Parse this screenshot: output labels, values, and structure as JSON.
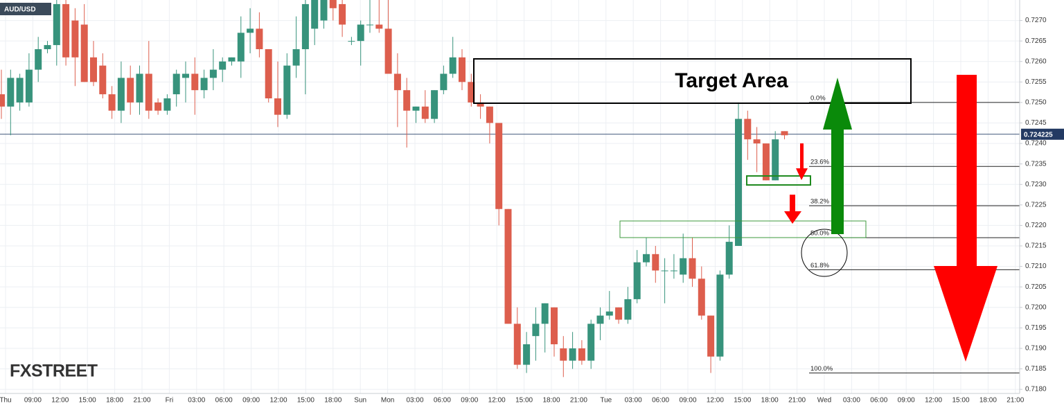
{
  "chart_data": {
    "type": "candlestick",
    "symbol": "AUD/USD",
    "watermark": "FXSTREET",
    "annotation": "Target Area",
    "ylim": [
      0.7179,
      0.7275
    ],
    "yticks": [
      {
        "value": 0.718,
        "label": "0.7180"
      },
      {
        "value": 0.7185,
        "label": "0.7185"
      },
      {
        "value": 0.719,
        "label": "0.7190"
      },
      {
        "value": 0.7195,
        "label": "0.7195"
      },
      {
        "value": 0.72,
        "label": "0.7200"
      },
      {
        "value": 0.7205,
        "label": "0.7205"
      },
      {
        "value": 0.721,
        "label": "0.7210"
      },
      {
        "value": 0.7215,
        "label": "0.7215"
      },
      {
        "value": 0.722,
        "label": "0.7220"
      },
      {
        "value": 0.7225,
        "label": "0.7225"
      },
      {
        "value": 0.723,
        "label": "0.7230"
      },
      {
        "value": 0.7235,
        "label": "0.7235"
      },
      {
        "value": 0.724,
        "label": "0.7240"
      },
      {
        "value": 0.7245,
        "label": "0.7245"
      },
      {
        "value": 0.725,
        "label": "0.7250"
      },
      {
        "value": 0.7255,
        "label": "0.7255"
      },
      {
        "value": 0.726,
        "label": "0.7260"
      },
      {
        "value": 0.7265,
        "label": "0.7265"
      },
      {
        "value": 0.727,
        "label": "0.7270"
      }
    ],
    "grid": true,
    "time_labels": [
      "Thu",
      "09:00",
      "12:00",
      "15:00",
      "18:00",
      "21:00",
      "Fri",
      "03:00",
      "06:00",
      "09:00",
      "12:00",
      "15:00",
      "18:00",
      "Sun",
      "Mon",
      "03:00",
      "06:00",
      "09:00",
      "12:00",
      "15:00",
      "18:00",
      "21:00",
      "Tue",
      "03:00",
      "06:00",
      "09:00",
      "12:00",
      "15:00",
      "18:00",
      "21:00",
      "Wed",
      "03:00",
      "06:00",
      "09:00",
      "12:00",
      "15:00",
      "18:00",
      "21:00"
    ],
    "last_price": 0.724225,
    "up_color": "#37937c",
    "down_color": "#dd5e4d",
    "fib_levels": [
      {
        "label": "0.0%",
        "value": 0.725
      },
      {
        "label": "23.6%",
        "value": 0.72344
      },
      {
        "label": "38.2%",
        "value": 0.72248
      },
      {
        "label": "50.0%",
        "value": 0.7217
      },
      {
        "label": "61.8%",
        "value": 0.72092
      },
      {
        "label": "100.0%",
        "value": 0.7184
      }
    ],
    "open": [
      0.7252,
      0.7249,
      0.725,
      0.725,
      0.7258,
      0.7263,
      0.7264,
      0.7274,
      0.727,
      0.7269,
      0.7261,
      0.7259,
      0.7252,
      0.7248,
      0.7256,
      0.725,
      0.7257,
      0.725,
      0.7248,
      0.7252,
      0.7256,
      0.7257,
      0.7253,
      0.7256,
      0.7258,
      0.726,
      0.726,
      0.7267,
      0.7268,
      0.7263,
      0.7251,
      0.7247,
      0.7259,
      0.7263,
      0.7268,
      0.727,
      0.728,
      0.7274,
      0.7265,
      0.7265,
      0.7269,
      0.7269,
      0.7268,
      0.7257,
      0.7253,
      0.7248,
      0.7249,
      0.7246,
      0.7253,
      0.7257,
      0.7261,
      0.7255,
      0.725,
      0.7249,
      0.7245,
      0.7224,
      0.7196,
      0.7186,
      0.7193,
      0.7196,
      0.72,
      0.719,
      0.7187,
      0.719,
      0.7187,
      0.7196,
      0.7198,
      0.72,
      0.7197,
      0.7202,
      0.7211,
      0.7213,
      0.7209,
      0.7209,
      0.7208,
      0.7212,
      0.7207,
      0.7198,
      0.7188,
      0.7208,
      0.7215,
      0.7246,
      0.7241,
      0.724,
      0.7231,
      0.7243
    ],
    "high": [
      0.7258,
      0.7258,
      0.7257,
      0.7262,
      0.7266,
      0.7265,
      0.7275,
      0.7275,
      0.7273,
      0.7274,
      0.7265,
      0.7262,
      0.7254,
      0.726,
      0.7259,
      0.7259,
      0.7265,
      0.7251,
      0.7252,
      0.7258,
      0.726,
      0.7261,
      0.7258,
      0.7263,
      0.7261,
      0.7261,
      0.7271,
      0.7273,
      0.7272,
      0.7263,
      0.726,
      0.7262,
      0.7271,
      0.7277,
      0.7277,
      0.728,
      0.7282,
      0.728,
      0.7266,
      0.727,
      0.7277,
      0.728,
      0.7282,
      0.7262,
      0.7256,
      0.7249,
      0.7253,
      0.7253,
      0.7259,
      0.7266,
      0.7263,
      0.7257,
      0.7252,
      0.7249,
      0.7245,
      0.7224,
      0.72,
      0.7194,
      0.72,
      0.7201,
      0.72,
      0.7193,
      0.7194,
      0.7192,
      0.7197,
      0.72,
      0.7204,
      0.72,
      0.7205,
      0.7214,
      0.7217,
      0.7215,
      0.7212,
      0.7213,
      0.7218,
      0.7217,
      0.721,
      0.7198,
      0.7209,
      0.722,
      0.725,
      0.7248,
      0.7244,
      0.724,
      0.7243,
      0.7243
    ],
    "low": [
      0.7246,
      0.7242,
      0.7248,
      0.7249,
      0.7255,
      0.7262,
      0.7259,
      0.7259,
      0.7254,
      0.7255,
      0.7254,
      0.7251,
      0.7246,
      0.7245,
      0.7247,
      0.7247,
      0.7246,
      0.7247,
      0.7247,
      0.7249,
      0.725,
      0.7247,
      0.7251,
      0.7253,
      0.7255,
      0.7259,
      0.7256,
      0.7262,
      0.7261,
      0.725,
      0.7244,
      0.7246,
      0.7256,
      0.7252,
      0.7264,
      0.7268,
      0.727,
      0.7266,
      0.7264,
      0.7259,
      0.7267,
      0.7267,
      0.7257,
      0.7244,
      0.7239,
      0.7245,
      0.7245,
      0.7245,
      0.7252,
      0.7256,
      0.7253,
      0.7249,
      0.7246,
      0.724,
      0.722,
      0.7196,
      0.7185,
      0.7184,
      0.7187,
      0.7189,
      0.7188,
      0.7183,
      0.7185,
      0.7186,
      0.7185,
      0.7192,
      0.7197,
      0.7196,
      0.7196,
      0.7201,
      0.721,
      0.7206,
      0.7201,
      0.7207,
      0.7206,
      0.7205,
      0.7197,
      0.7184,
      0.7187,
      0.7207,
      0.7215,
      0.7236,
      0.7233,
      0.7231,
      0.7231,
      0.7241
    ],
    "close": [
      0.7249,
      0.7256,
      0.7256,
      0.7258,
      0.7263,
      0.7264,
      0.7274,
      0.7261,
      0.7261,
      0.7255,
      0.7255,
      0.7252,
      0.7248,
      0.7256,
      0.725,
      0.7257,
      0.7248,
      0.7248,
      0.7251,
      0.7257,
      0.7257,
      0.7253,
      0.7256,
      0.7258,
      0.726,
      0.7261,
      0.7267,
      0.7268,
      0.7263,
      0.7251,
      0.7247,
      0.7259,
      0.7263,
      0.7274,
      0.7277,
      0.7278,
      0.7273,
      0.7269,
      0.7265,
      0.7269,
      0.7269,
      0.7268,
      0.7257,
      0.7253,
      0.7248,
      0.7249,
      0.7246,
      0.7253,
      0.7257,
      0.7261,
      0.7255,
      0.725,
      0.7249,
      0.7245,
      0.7224,
      0.7196,
      0.7186,
      0.7191,
      0.7196,
      0.7201,
      0.7191,
      0.7187,
      0.719,
      0.7187,
      0.7196,
      0.7198,
      0.7199,
      0.7197,
      0.7202,
      0.7211,
      0.7213,
      0.7209,
      0.7209,
      0.7209,
      0.7212,
      0.7207,
      0.7198,
      0.7188,
      0.7208,
      0.7216,
      0.7246,
      0.7241,
      0.724,
      0.7231,
      0.7241,
      0.7242
    ]
  }
}
